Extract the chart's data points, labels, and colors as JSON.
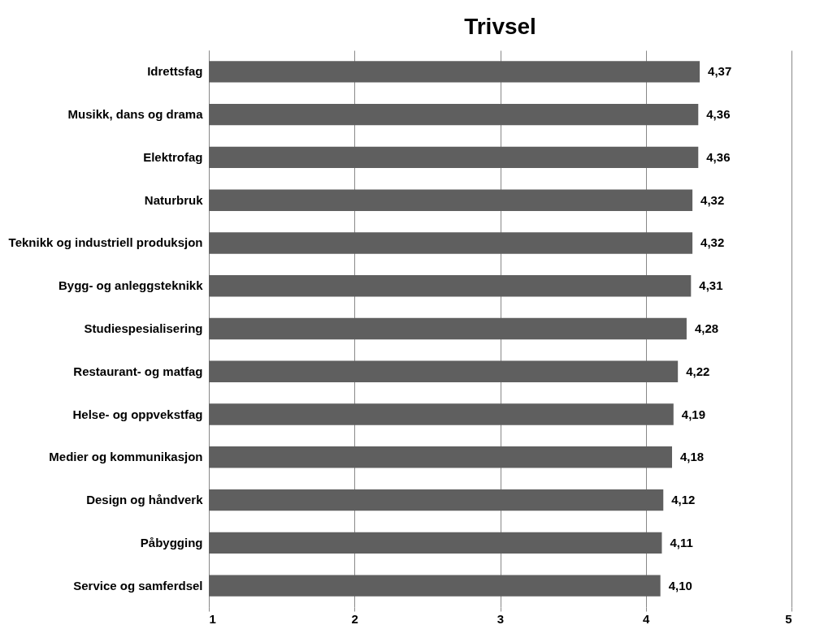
{
  "chart_data": {
    "type": "bar",
    "orientation": "horizontal",
    "title": "Trivsel",
    "categories": [
      "Idrettsfag",
      "Musikk, dans og drama",
      "Elektrofag",
      "Naturbruk",
      "Teknikk og industriell produksjon",
      "Bygg- og anleggsteknikk",
      "Studiespesialisering",
      "Restaurant- og matfag",
      "Helse- og oppvekstfag",
      "Medier og kommunikasjon",
      "Design og håndverk",
      "Påbygging",
      "Service og samferdsel"
    ],
    "values": [
      4.37,
      4.36,
      4.36,
      4.32,
      4.32,
      4.31,
      4.28,
      4.22,
      4.19,
      4.18,
      4.12,
      4.11,
      4.1
    ],
    "value_labels": [
      "4,37",
      "4,36",
      "4,36",
      "4,32",
      "4,32",
      "4,31",
      "4,28",
      "4,22",
      "4,19",
      "4,18",
      "4,12",
      "4,11",
      "4,10"
    ],
    "color": "#5f5f5f",
    "xlim": [
      1,
      5
    ],
    "xticks": [
      1,
      2,
      3,
      4,
      5
    ],
    "grid": "x"
  }
}
